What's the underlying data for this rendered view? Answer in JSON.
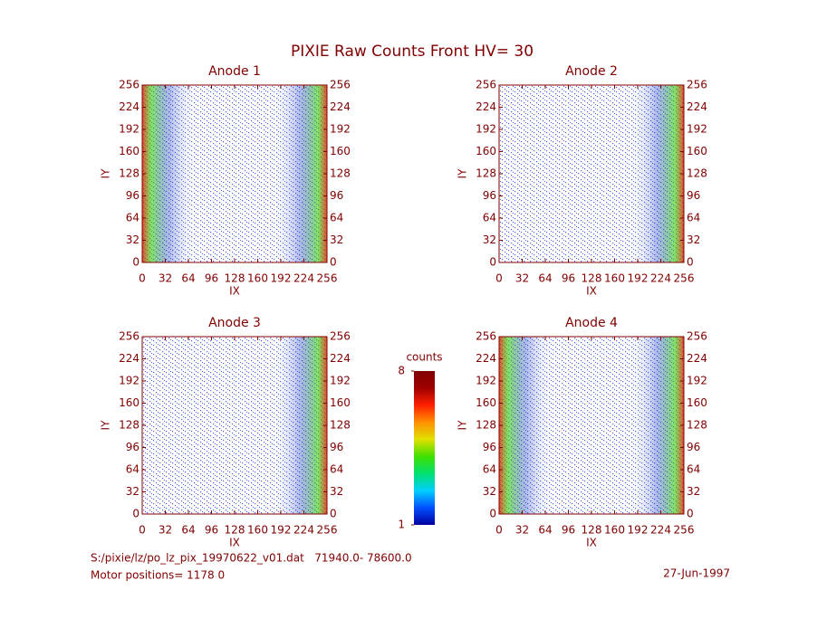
{
  "title": "PIXIE Raw Counts Front HV= 30",
  "footer": {
    "file": "S:/pixie/lz/po_lz_pix_19970622_v01.dat   71940.0- 78600.0",
    "motor": "Motor positions= 1178 0",
    "date": "27-Jun-1997"
  },
  "chart_data": [
    {
      "type": "heatmap",
      "title": "Anode 1",
      "xlabel": "IX",
      "ylabel": "IY",
      "xlim": [
        0,
        256
      ],
      "ylim": [
        0,
        256
      ],
      "xticks": [
        0,
        32,
        64,
        96,
        128,
        160,
        192,
        224,
        256
      ],
      "yticks": [
        0,
        32,
        64,
        96,
        128,
        160,
        192,
        224,
        256
      ]
    },
    {
      "type": "heatmap",
      "title": "Anode 2",
      "xlabel": "IX",
      "ylabel": "IY",
      "xlim": [
        0,
        256
      ],
      "ylim": [
        0,
        256
      ],
      "xticks": [
        0,
        32,
        64,
        96,
        128,
        160,
        192,
        224,
        256
      ],
      "yticks": [
        0,
        32,
        64,
        96,
        128,
        160,
        192,
        224,
        256
      ]
    },
    {
      "type": "heatmap",
      "title": "Anode 3",
      "xlabel": "IX",
      "ylabel": "IY",
      "xlim": [
        0,
        256
      ],
      "ylim": [
        0,
        256
      ],
      "xticks": [
        0,
        32,
        64,
        96,
        128,
        160,
        192,
        224,
        256
      ],
      "yticks": [
        0,
        32,
        64,
        96,
        128,
        160,
        192,
        224,
        256
      ]
    },
    {
      "type": "heatmap",
      "title": "Anode 4",
      "xlabel": "IX",
      "ylabel": "IY",
      "xlim": [
        0,
        256
      ],
      "ylim": [
        0,
        256
      ],
      "xticks": [
        0,
        32,
        64,
        96,
        128,
        160,
        192,
        224,
        256
      ],
      "yticks": [
        0,
        32,
        64,
        96,
        128,
        160,
        192,
        224,
        256
      ]
    },
    {
      "type": "colorbar",
      "title": "counts",
      "ylim": [
        1,
        8
      ],
      "yticks": [
        1,
        8
      ],
      "colors": [
        "#0000a0",
        "#0050ff",
        "#00d0ff",
        "#00e070",
        "#40e000",
        "#e0e000",
        "#ff9000",
        "#ff2000",
        "#a00000",
        "#800000"
      ]
    }
  ]
}
